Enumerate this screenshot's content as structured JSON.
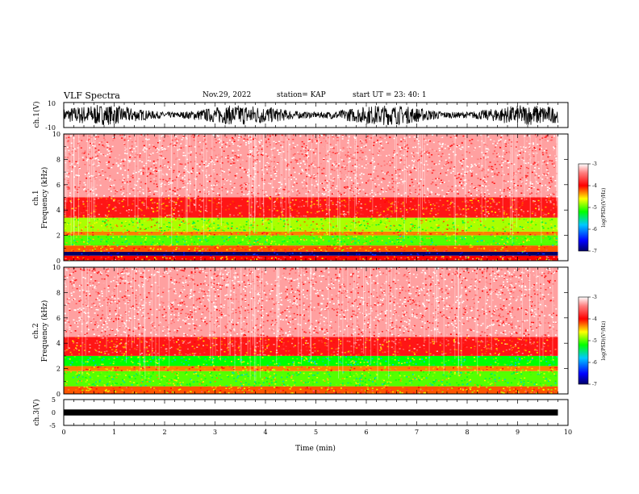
{
  "header": {
    "title": "VLF Spectra",
    "date": "Nov.29, 2022",
    "station": "station= KAP",
    "start": "start  UT  =   23: 40: 1"
  },
  "chart_data": [
    {
      "type": "line",
      "title": "",
      "ylabel": "ch.1(V)",
      "ylim": [
        -10,
        10
      ],
      "yticks": [
        "10",
        "-10"
      ],
      "xlim": [
        0,
        10
      ],
      "description_series": "ch.1 waveform, dense noise oscillating roughly between -10 and 10 V over 0–9.8 min"
    },
    {
      "type": "heatmap",
      "ylabel_lines": [
        "ch.1",
        "Frequency  (kHz)"
      ],
      "ylim": [
        0,
        10
      ],
      "yticks": [
        "0",
        "2",
        "4",
        "6",
        "8",
        "10"
      ],
      "xlim": [
        0,
        10
      ],
      "data_end_min": 9.8,
      "bands_khz": [
        {
          "from": 0.0,
          "to": 0.4,
          "level": -4.0
        },
        {
          "from": 0.4,
          "to": 0.7,
          "level": -7.0
        },
        {
          "from": 0.7,
          "to": 1.2,
          "level": -4.2
        },
        {
          "from": 1.2,
          "to": 2.0,
          "level": -5.0
        },
        {
          "from": 2.0,
          "to": 2.3,
          "level": -4.3
        },
        {
          "from": 2.3,
          "to": 3.4,
          "level": -4.8
        },
        {
          "from": 3.4,
          "to": 5.0,
          "level": -3.9
        },
        {
          "from": 5.0,
          "to": 10.0,
          "level": -3.3
        }
      ]
    },
    {
      "type": "heatmap",
      "ylabel_lines": [
        "ch.2",
        "Frequency  (kHz)"
      ],
      "ylim": [
        0,
        10
      ],
      "yticks": [
        "0",
        "2",
        "4",
        "6",
        "8",
        "10"
      ],
      "xlim": [
        0,
        10
      ],
      "data_end_min": 9.8,
      "bands_khz": [
        {
          "from": 0.0,
          "to": 0.6,
          "level": -4.2
        },
        {
          "from": 0.6,
          "to": 1.8,
          "level": -5.0
        },
        {
          "from": 1.8,
          "to": 2.2,
          "level": -4.3
        },
        {
          "from": 2.2,
          "to": 3.0,
          "level": -5.2
        },
        {
          "from": 3.0,
          "to": 4.5,
          "level": -3.9
        },
        {
          "from": 4.5,
          "to": 10.0,
          "level": -3.3
        }
      ]
    },
    {
      "type": "line",
      "ylabel": "ch.3(V)",
      "ylim": [
        -5,
        5
      ],
      "yticks": [
        "5",
        "0",
        "-5"
      ],
      "xlim": [
        0,
        10
      ],
      "xticks": [
        "0",
        "1",
        "2",
        "3",
        "4",
        "5",
        "6",
        "7",
        "8",
        "9",
        "10"
      ],
      "xlabel": "Time  (min)",
      "band_v": [
        -0.7,
        0.7
      ]
    }
  ],
  "colorbar": {
    "label": "log(PSD)(V²/Hz)",
    "range": [
      -7,
      -3
    ],
    "ticks": [
      "-3",
      "-4",
      "-5",
      "-6",
      "-7"
    ],
    "colors": [
      "#000066",
      "#0000ff",
      "#00c8ff",
      "#00ff00",
      "#ffff00",
      "#ff0000",
      "#ff8080",
      "#ffffff"
    ]
  }
}
